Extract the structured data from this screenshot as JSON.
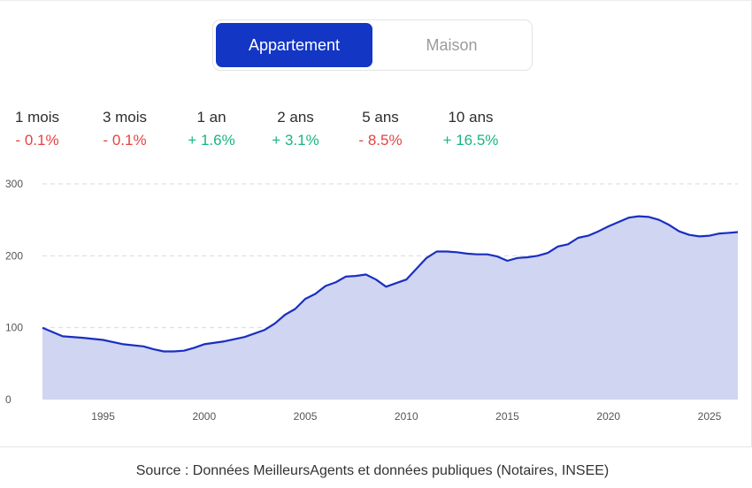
{
  "toggle": {
    "options": [
      {
        "label": "Appartement",
        "active": true
      },
      {
        "label": "Maison",
        "active": false
      }
    ]
  },
  "stats": [
    {
      "label": "1 mois",
      "value": "- 0.1%",
      "trend": "negative"
    },
    {
      "label": "3 mois",
      "value": "- 0.1%",
      "trend": "negative"
    },
    {
      "label": "1 an",
      "value": "+ 1.6%",
      "trend": "positive"
    },
    {
      "label": "2 ans",
      "value": "+ 3.1%",
      "trend": "positive"
    },
    {
      "label": "5 ans",
      "value": "- 8.5%",
      "trend": "negative"
    },
    {
      "label": "10 ans",
      "value": "+ 16.5%",
      "trend": "positive"
    }
  ],
  "colors": {
    "accent": "#1436c4",
    "line": "#1a2fc0",
    "area": "#d0d5f2",
    "negative": "#e84141",
    "positive": "#17b67d"
  },
  "chart_data": {
    "type": "area",
    "title": "",
    "xlabel": "",
    "ylabel": "",
    "xlim": [
      1992,
      2026.4
    ],
    "ylim": [
      0,
      300
    ],
    "yticks": [
      "0",
      "100",
      "200",
      "300"
    ],
    "xticks": [
      "1995",
      "2000",
      "2005",
      "2010",
      "2015",
      "2020",
      "2025"
    ],
    "grid": true,
    "series": [
      {
        "x": [
          1992,
          1993,
          1994,
          1995,
          1996,
          1997,
          1997.5,
          1998,
          1998.5,
          1999,
          1999.5,
          2000,
          2001,
          2002,
          2003,
          2003.5,
          2004,
          2004.5,
          2005,
          2005.5,
          2006,
          2006.5,
          2007,
          2007.5,
          2008,
          2008.5,
          2009,
          2009.5,
          2010,
          2010.5,
          2011,
          2011.5,
          2012,
          2012.5,
          2013,
          2013.5,
          2014,
          2014.5,
          2015,
          2015.5,
          2016,
          2016.5,
          2017,
          2017.5,
          2018,
          2018.5,
          2019,
          2019.5,
          2020,
          2020.5,
          2021,
          2021.5,
          2022,
          2022.5,
          2023,
          2023.5,
          2024,
          2024.5,
          2025,
          2025.5,
          2026,
          2026.4
        ],
        "y": [
          100,
          88,
          86,
          83,
          77,
          74,
          70,
          67,
          67,
          68,
          72,
          77,
          81,
          87,
          97,
          106,
          118,
          126,
          140,
          147,
          158,
          163,
          171,
          172,
          174,
          167,
          157,
          162,
          167,
          182,
          197,
          206,
          206,
          205,
          203,
          202,
          202,
          199,
          193,
          197,
          198,
          200,
          204,
          213,
          216,
          225,
          228,
          234,
          241,
          247,
          253,
          255,
          254,
          250,
          243,
          234,
          229,
          227,
          228,
          231,
          232,
          233
        ]
      }
    ]
  },
  "source": "Source : Données MeilleursAgents et données publiques (Notaires, INSEE)"
}
